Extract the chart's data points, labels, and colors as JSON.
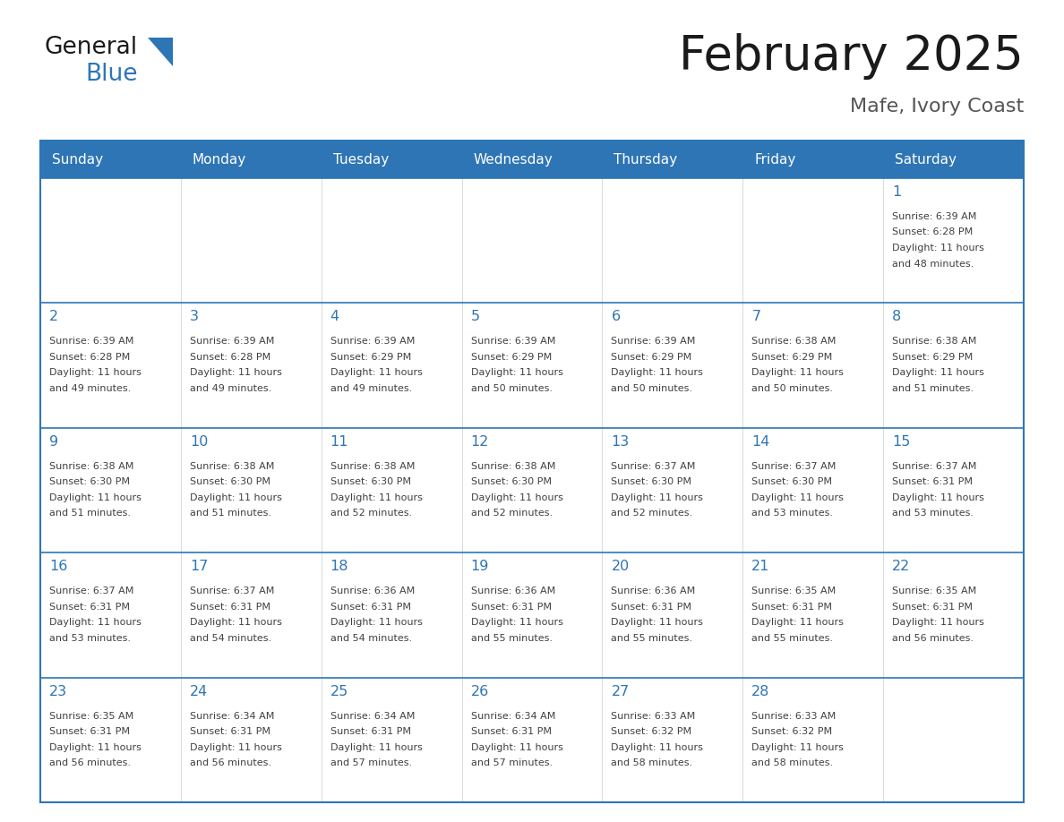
{
  "title": "February 2025",
  "subtitle": "Mafe, Ivory Coast",
  "header_bg": "#2E75B6",
  "header_text_color": "#FFFFFF",
  "cell_bg": "#FFFFFF",
  "cell_border_color": "#2E75B6",
  "day_number_color": "#2E75B6",
  "info_text_color": "#404040",
  "days_of_week": [
    "Sunday",
    "Monday",
    "Tuesday",
    "Wednesday",
    "Thursday",
    "Friday",
    "Saturday"
  ],
  "title_color": "#1a1a1a",
  "subtitle_color": "#555555",
  "logo_general_color": "#1a1a1a",
  "logo_blue_color": "#2E75B6",
  "logo_triangle_color": "#2E75B6",
  "calendar": [
    [
      null,
      null,
      null,
      null,
      null,
      null,
      {
        "day": 1,
        "sunrise": "6:39 AM",
        "sunset": "6:28 PM",
        "daylight": "11 hours and 48 minutes."
      }
    ],
    [
      {
        "day": 2,
        "sunrise": "6:39 AM",
        "sunset": "6:28 PM",
        "daylight": "11 hours and 49 minutes."
      },
      {
        "day": 3,
        "sunrise": "6:39 AM",
        "sunset": "6:28 PM",
        "daylight": "11 hours and 49 minutes."
      },
      {
        "day": 4,
        "sunrise": "6:39 AM",
        "sunset": "6:29 PM",
        "daylight": "11 hours and 49 minutes."
      },
      {
        "day": 5,
        "sunrise": "6:39 AM",
        "sunset": "6:29 PM",
        "daylight": "11 hours and 50 minutes."
      },
      {
        "day": 6,
        "sunrise": "6:39 AM",
        "sunset": "6:29 PM",
        "daylight": "11 hours and 50 minutes."
      },
      {
        "day": 7,
        "sunrise": "6:38 AM",
        "sunset": "6:29 PM",
        "daylight": "11 hours and 50 minutes."
      },
      {
        "day": 8,
        "sunrise": "6:38 AM",
        "sunset": "6:29 PM",
        "daylight": "11 hours and 51 minutes."
      }
    ],
    [
      {
        "day": 9,
        "sunrise": "6:38 AM",
        "sunset": "6:30 PM",
        "daylight": "11 hours and 51 minutes."
      },
      {
        "day": 10,
        "sunrise": "6:38 AM",
        "sunset": "6:30 PM",
        "daylight": "11 hours and 51 minutes."
      },
      {
        "day": 11,
        "sunrise": "6:38 AM",
        "sunset": "6:30 PM",
        "daylight": "11 hours and 52 minutes."
      },
      {
        "day": 12,
        "sunrise": "6:38 AM",
        "sunset": "6:30 PM",
        "daylight": "11 hours and 52 minutes."
      },
      {
        "day": 13,
        "sunrise": "6:37 AM",
        "sunset": "6:30 PM",
        "daylight": "11 hours and 52 minutes."
      },
      {
        "day": 14,
        "sunrise": "6:37 AM",
        "sunset": "6:30 PM",
        "daylight": "11 hours and 53 minutes."
      },
      {
        "day": 15,
        "sunrise": "6:37 AM",
        "sunset": "6:31 PM",
        "daylight": "11 hours and 53 minutes."
      }
    ],
    [
      {
        "day": 16,
        "sunrise": "6:37 AM",
        "sunset": "6:31 PM",
        "daylight": "11 hours and 53 minutes."
      },
      {
        "day": 17,
        "sunrise": "6:37 AM",
        "sunset": "6:31 PM",
        "daylight": "11 hours and 54 minutes."
      },
      {
        "day": 18,
        "sunrise": "6:36 AM",
        "sunset": "6:31 PM",
        "daylight": "11 hours and 54 minutes."
      },
      {
        "day": 19,
        "sunrise": "6:36 AM",
        "sunset": "6:31 PM",
        "daylight": "11 hours and 55 minutes."
      },
      {
        "day": 20,
        "sunrise": "6:36 AM",
        "sunset": "6:31 PM",
        "daylight": "11 hours and 55 minutes."
      },
      {
        "day": 21,
        "sunrise": "6:35 AM",
        "sunset": "6:31 PM",
        "daylight": "11 hours and 55 minutes."
      },
      {
        "day": 22,
        "sunrise": "6:35 AM",
        "sunset": "6:31 PM",
        "daylight": "11 hours and 56 minutes."
      }
    ],
    [
      {
        "day": 23,
        "sunrise": "6:35 AM",
        "sunset": "6:31 PM",
        "daylight": "11 hours and 56 minutes."
      },
      {
        "day": 24,
        "sunrise": "6:34 AM",
        "sunset": "6:31 PM",
        "daylight": "11 hours and 56 minutes."
      },
      {
        "day": 25,
        "sunrise": "6:34 AM",
        "sunset": "6:31 PM",
        "daylight": "11 hours and 57 minutes."
      },
      {
        "day": 26,
        "sunrise": "6:34 AM",
        "sunset": "6:31 PM",
        "daylight": "11 hours and 57 minutes."
      },
      {
        "day": 27,
        "sunrise": "6:33 AM",
        "sunset": "6:32 PM",
        "daylight": "11 hours and 58 minutes."
      },
      {
        "day": 28,
        "sunrise": "6:33 AM",
        "sunset": "6:32 PM",
        "daylight": "11 hours and 58 minutes."
      },
      null
    ]
  ]
}
